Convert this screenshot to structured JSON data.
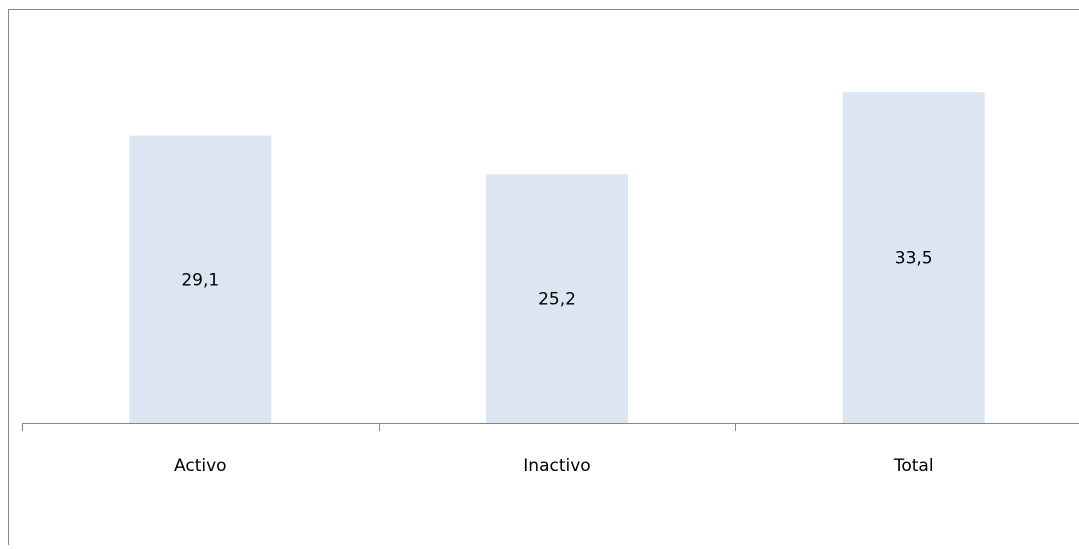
{
  "chart_data": {
    "type": "bar",
    "categories": [
      "Activo",
      "Inactivo",
      "Total"
    ],
    "values": [
      29.1,
      25.2,
      33.5
    ],
    "data_labels": [
      "29,1",
      "25,2",
      "33,5"
    ],
    "bar_color": "#dce6f2",
    "axis_color": "#868686",
    "frame_color": "#868686",
    "y_axis_visible": false,
    "grid": false,
    "legend": "none"
  }
}
